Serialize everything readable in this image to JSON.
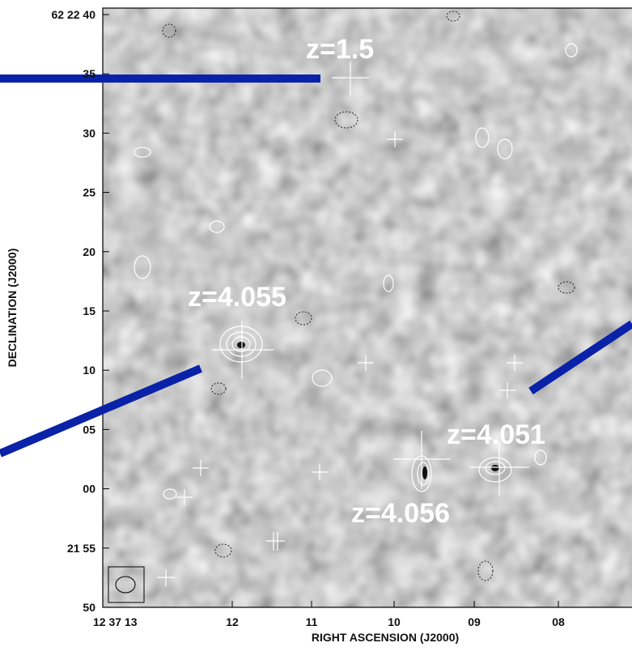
{
  "axes": {
    "y_label": "DECLINATION (J2000)",
    "x_label": "RIGHT ASCENSION (J2000)",
    "y_ticks": [
      "62 22 40",
      "35",
      "30",
      "25",
      "20",
      "15",
      "10",
      "05",
      "00",
      "21 55",
      "50"
    ],
    "x_ticks": [
      "12 37 13",
      "12",
      "11",
      "10",
      "09",
      "08"
    ]
  },
  "annotations": [
    "z=1.5",
    "z=4.055",
    "z=4.051",
    "z=4.056"
  ]
}
